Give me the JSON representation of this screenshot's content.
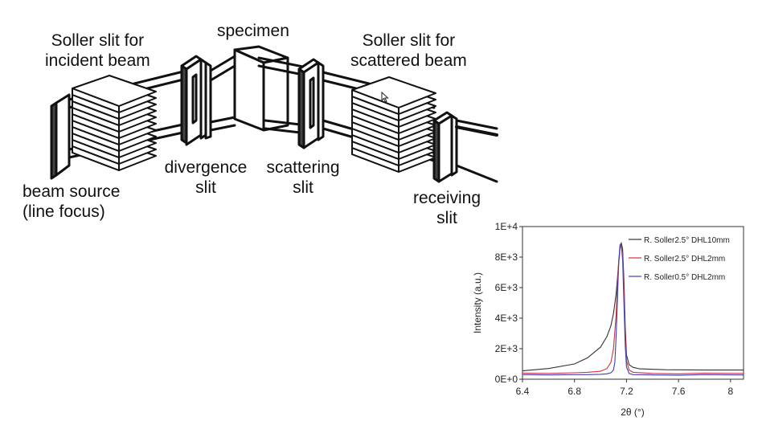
{
  "labels": {
    "specimen": "specimen",
    "soller_incident_1": "Soller slit for",
    "soller_incident_2": "incident beam",
    "soller_scattered_1": "Soller slit for",
    "soller_scattered_2": "scattered beam",
    "divergence_1": "divergence",
    "divergence_2": "slit",
    "scattering_1": "scattering",
    "scattering_2": "slit",
    "beam_source_1": "beam source",
    "beam_source_2": "(line focus)",
    "receiving_1": "receiving",
    "receiving_2": "slit"
  },
  "chart_data": {
    "type": "line",
    "title": "",
    "xlabel": "2θ (°)",
    "ylabel": "Intensity (a.u.)",
    "xlim": [
      6.4,
      8.1
    ],
    "ylim": [
      0,
      10000
    ],
    "x_ticks": [
      6.4,
      6.8,
      7.2,
      7.6,
      8
    ],
    "x_tick_labels": [
      "6.4",
      "6.8",
      "7.2",
      "7.6",
      "8"
    ],
    "y_ticks": [
      0,
      2000,
      4000,
      6000,
      8000,
      10000
    ],
    "y_tick_labels": [
      "0E+0",
      "2E+3",
      "4E+3",
      "6E+3",
      "8E+3",
      "1E+4"
    ],
    "legend_position": "top-right",
    "series": [
      {
        "name": "R. Soller2.5°  DHL10mm",
        "color": "#333333",
        "x": [
          6.4,
          6.6,
          6.8,
          6.9,
          7.0,
          7.05,
          7.08,
          7.1,
          7.12,
          7.14,
          7.15,
          7.16,
          7.17,
          7.18,
          7.19,
          7.2,
          7.22,
          7.25,
          7.3,
          7.5,
          7.8,
          8.1
        ],
        "y": [
          550,
          700,
          1000,
          1400,
          2100,
          2800,
          3500,
          4300,
          5600,
          7600,
          8500,
          8950,
          8500,
          6500,
          3500,
          1600,
          950,
          780,
          680,
          620,
          600,
          600
        ]
      },
      {
        "name": "R. Soller2.5°  DHL2mm",
        "color": "#cc3344",
        "x": [
          6.4,
          6.6,
          6.8,
          6.9,
          7.0,
          7.05,
          7.08,
          7.1,
          7.12,
          7.13,
          7.14,
          7.15,
          7.16,
          7.17,
          7.18,
          7.19,
          7.2,
          7.22,
          7.25,
          7.4,
          7.6,
          7.8,
          8.1
        ],
        "y": [
          400,
          380,
          420,
          450,
          520,
          700,
          1100,
          2000,
          4200,
          6200,
          7800,
          8600,
          8800,
          8200,
          6000,
          3000,
          1200,
          600,
          450,
          380,
          350,
          400,
          380
        ]
      },
      {
        "name": "R. Soller0.5°  DHL2mm",
        "color": "#4040b0",
        "x": [
          6.4,
          6.6,
          6.8,
          6.9,
          7.0,
          7.05,
          7.08,
          7.1,
          7.11,
          7.12,
          7.13,
          7.14,
          7.15,
          7.16,
          7.17,
          7.18,
          7.19,
          7.2,
          7.22,
          7.25,
          7.4,
          7.6,
          7.8,
          8.1
        ],
        "y": [
          300,
          280,
          300,
          300,
          320,
          350,
          420,
          600,
          1100,
          2800,
          5200,
          7600,
          8800,
          8900,
          7800,
          5000,
          2200,
          800,
          380,
          300,
          280,
          260,
          300,
          280
        ]
      }
    ]
  }
}
